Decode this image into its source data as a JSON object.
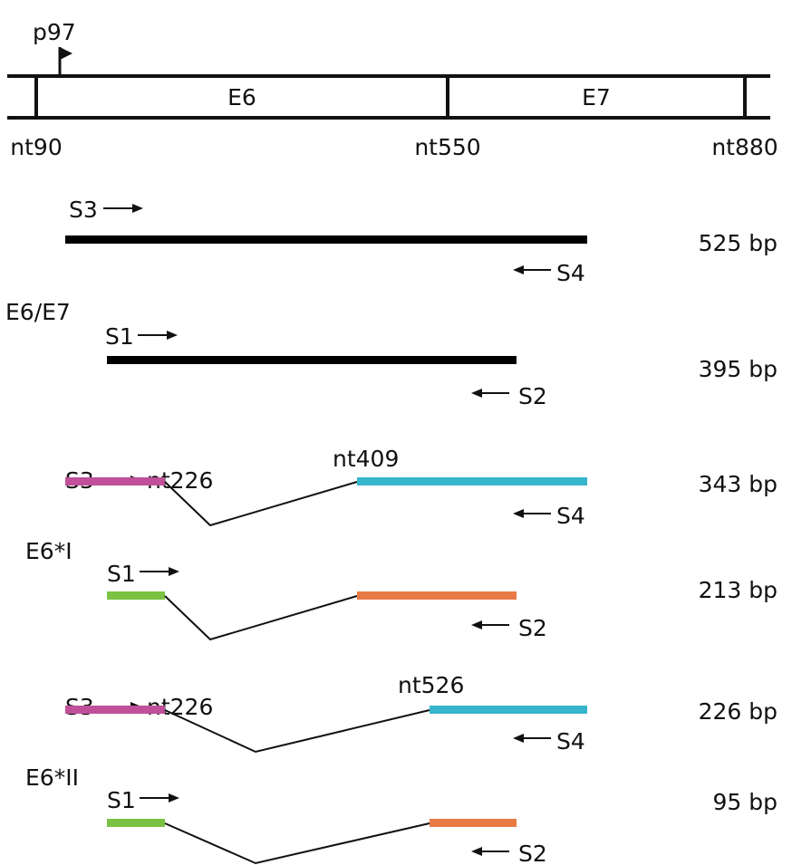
{
  "gene_map": {
    "promoter": "p97",
    "exons": [
      "E6",
      "E7"
    ],
    "positions": [
      "nt90",
      "nt550",
      "nt880"
    ]
  },
  "transcripts": [
    {
      "name": "",
      "products": [
        {
          "forward_primer": "S3",
          "reverse_primer": "S4",
          "splice_donor": "",
          "splice_acceptor": "",
          "size": "525 bp"
        }
      ]
    },
    {
      "name": "E6/E7",
      "products": [
        {
          "forward_primer": "S1",
          "reverse_primer": "S2",
          "splice_donor": "",
          "splice_acceptor": "",
          "size": "395 bp"
        }
      ]
    },
    {
      "name": "",
      "products": [
        {
          "forward_primer": "S3",
          "reverse_primer": "S4",
          "splice_donor": "nt226",
          "splice_acceptor": "nt409",
          "size": "343 bp"
        }
      ]
    },
    {
      "name": "E6*I",
      "products": [
        {
          "forward_primer": "S1",
          "reverse_primer": "S2",
          "splice_donor": "",
          "splice_acceptor": "",
          "size": "213 bp"
        }
      ]
    },
    {
      "name": "",
      "products": [
        {
          "forward_primer": "S3",
          "reverse_primer": "S4",
          "splice_donor": "nt226",
          "splice_acceptor": "nt526",
          "size": "226 bp"
        }
      ]
    },
    {
      "name": "E6*II",
      "products": [
        {
          "forward_primer": "S1",
          "reverse_primer": "S2",
          "splice_donor": "",
          "splice_acceptor": "",
          "size": "95 bp"
        }
      ]
    }
  ],
  "colors": {
    "unspliced": "#000000",
    "s3_exon": "#c0509a",
    "s4_exon": "#36b5cc",
    "s1_exon": "#7bc242",
    "s2_exon": "#e97a45",
    "line": "#111111"
  }
}
